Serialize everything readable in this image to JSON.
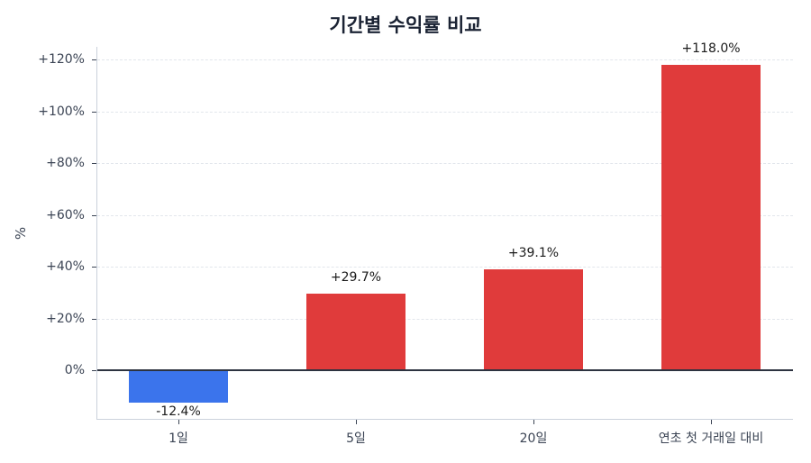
{
  "chart_data": {
    "type": "bar",
    "title": "기간별 수익률 비교",
    "xlabel": "",
    "ylabel": "%",
    "categories": [
      "1일",
      "5일",
      "20일",
      "연초 첫 거래일 대비"
    ],
    "values": [
      -12.4,
      29.7,
      39.1,
      118.0
    ],
    "value_labels": [
      "-12.4%",
      "+29.7%",
      "+39.1%",
      "+118.0%"
    ],
    "ylim": [
      -19,
      124
    ],
    "yticks": [
      0,
      20,
      40,
      60,
      80,
      100,
      120
    ],
    "ytick_labels": [
      "0%",
      "+20%",
      "+40%",
      "+60%",
      "+80%",
      "+100%",
      "+120%"
    ],
    "grid": true,
    "colors": {
      "positive": "#e03b3b",
      "negative": "#3b74ec",
      "zero_line": "#2d3340"
    }
  }
}
